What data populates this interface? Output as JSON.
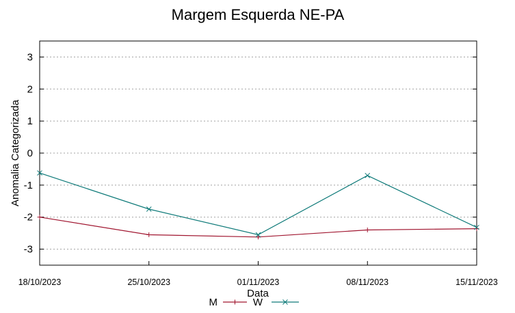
{
  "chart_data": {
    "type": "line",
    "title": "Margem Esquerda NE-PA",
    "xlabel": "Data",
    "ylabel": "Anomalia Categorizada",
    "x": [
      "18/10/2023",
      "25/10/2023",
      "01/11/2023",
      "08/11/2023",
      "15/11/2023"
    ],
    "ylim": [
      -3.5,
      3.5
    ],
    "yticks": [
      -3,
      -2,
      -1,
      0,
      1,
      2,
      3
    ],
    "grid": true,
    "legend_position": "bottom",
    "series": [
      {
        "name": "M",
        "color": "#a0152f",
        "marker": "plus",
        "values": [
          -2.0,
          -2.55,
          -2.62,
          -2.4,
          -2.36
        ]
      },
      {
        "name": "W",
        "color": "#0e7a79",
        "marker": "x",
        "values": [
          -0.62,
          -1.75,
          -2.55,
          -0.7,
          -2.32
        ]
      }
    ]
  }
}
